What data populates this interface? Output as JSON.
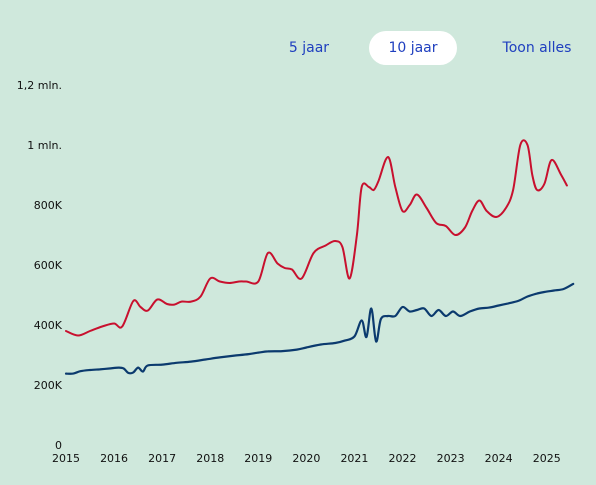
{
  "range_tabs": [
    {
      "label": "5 jaar",
      "selected": false
    },
    {
      "label": "10 jaar",
      "selected": true
    },
    {
      "label": "Toon alles",
      "selected": false
    }
  ],
  "colors": {
    "background": "#cfe8dc",
    "tab_text": "#1f3fbf",
    "tab_selected_bg": "#ffffff",
    "series_red": "#c8102e",
    "series_navy": "#0b3a6e"
  },
  "chart_data": {
    "type": "line",
    "title": "",
    "xlabel": "",
    "ylabel": "",
    "xlim": [
      2015,
      2025.65
    ],
    "ylim": [
      0,
      1200000
    ],
    "grid": false,
    "x_ticks": [
      {
        "value": 2015,
        "label": "2015"
      },
      {
        "value": 2016,
        "label": "2016"
      },
      {
        "value": 2017,
        "label": "2017"
      },
      {
        "value": 2018,
        "label": "2018"
      },
      {
        "value": 2019,
        "label": "2019"
      },
      {
        "value": 2020,
        "label": "2020"
      },
      {
        "value": 2021,
        "label": "2021"
      },
      {
        "value": 2022,
        "label": "2022"
      },
      {
        "value": 2023,
        "label": "2023"
      },
      {
        "value": 2024,
        "label": "2024"
      },
      {
        "value": 2025,
        "label": "2025"
      }
    ],
    "y_ticks": [
      {
        "value": 0,
        "label": "0"
      },
      {
        "value": 200000,
        "label": "200K"
      },
      {
        "value": 400000,
        "label": "400K"
      },
      {
        "value": 600000,
        "label": "600K"
      },
      {
        "value": 800000,
        "label": "800K"
      },
      {
        "value": 1000000,
        "label": "1 mln."
      },
      {
        "value": 1200000,
        "label": "1,2 mln."
      }
    ],
    "series": [
      {
        "color": "#c8102e",
        "x": [
          2015.0,
          2015.25,
          2015.5,
          2015.75,
          2016.0,
          2016.17,
          2016.4,
          2016.55,
          2016.7,
          2016.9,
          2017.1,
          2017.25,
          2017.4,
          2017.6,
          2017.8,
          2018.0,
          2018.2,
          2018.4,
          2018.6,
          2018.75,
          2019.0,
          2019.2,
          2019.4,
          2019.55,
          2019.7,
          2019.9,
          2020.15,
          2020.4,
          2020.6,
          2020.75,
          2020.9,
          2021.05,
          2021.15,
          2021.3,
          2021.4,
          2021.5,
          2021.7,
          2021.85,
          2022.0,
          2022.15,
          2022.3,
          2022.5,
          2022.7,
          2022.9,
          2023.1,
          2023.3,
          2023.45,
          2023.6,
          2023.75,
          2023.95,
          2024.15,
          2024.3,
          2024.45,
          2024.6,
          2024.7,
          2024.8,
          2024.95,
          2025.1,
          2025.3,
          2025.42
        ],
        "values": [
          380000,
          365000,
          380000,
          395000,
          405000,
          395000,
          480000,
          460000,
          448000,
          485000,
          470000,
          468000,
          478000,
          478000,
          495000,
          555000,
          545000,
          540000,
          545000,
          545000,
          545000,
          640000,
          605000,
          590000,
          585000,
          555000,
          640000,
          665000,
          680000,
          660000,
          555000,
          700000,
          860000,
          860000,
          850000,
          880000,
          960000,
          860000,
          780000,
          800000,
          835000,
          790000,
          740000,
          730000,
          700000,
          725000,
          780000,
          815000,
          780000,
          760000,
          790000,
          850000,
          1000000,
          1000000,
          900000,
          850000,
          870000,
          950000,
          900000,
          865000
        ]
      },
      {
        "color": "#0b3a6e",
        "x": [
          2015.0,
          2015.15,
          2015.3,
          2015.5,
          2015.7,
          2015.9,
          2016.1,
          2016.2,
          2016.3,
          2016.4,
          2016.5,
          2016.6,
          2016.7,
          2017.0,
          2017.3,
          2017.6,
          2017.9,
          2018.2,
          2018.5,
          2018.8,
          2019.0,
          2019.2,
          2019.5,
          2019.8,
          2020.0,
          2020.3,
          2020.6,
          2020.8,
          2021.0,
          2021.15,
          2021.25,
          2021.35,
          2021.45,
          2021.55,
          2021.7,
          2021.85,
          2022.0,
          2022.15,
          2022.3,
          2022.45,
          2022.6,
          2022.75,
          2022.9,
          2023.05,
          2023.2,
          2023.4,
          2023.6,
          2023.8,
          2024.0,
          2024.2,
          2024.4,
          2024.6,
          2024.8,
          2024.95,
          2025.15,
          2025.35,
          2025.55
        ],
        "values": [
          238000,
          238000,
          246000,
          250000,
          252000,
          255000,
          258000,
          255000,
          240000,
          242000,
          258000,
          245000,
          265000,
          268000,
          274000,
          278000,
          285000,
          292000,
          298000,
          303000,
          308000,
          312000,
          313000,
          318000,
          325000,
          335000,
          340000,
          348000,
          362000,
          415000,
          360000,
          455000,
          345000,
          420000,
          430000,
          430000,
          460000,
          445000,
          450000,
          455000,
          430000,
          450000,
          430000,
          445000,
          430000,
          445000,
          455000,
          458000,
          465000,
          472000,
          480000,
          495000,
          505000,
          510000,
          515000,
          520000,
          537000
        ]
      }
    ]
  }
}
